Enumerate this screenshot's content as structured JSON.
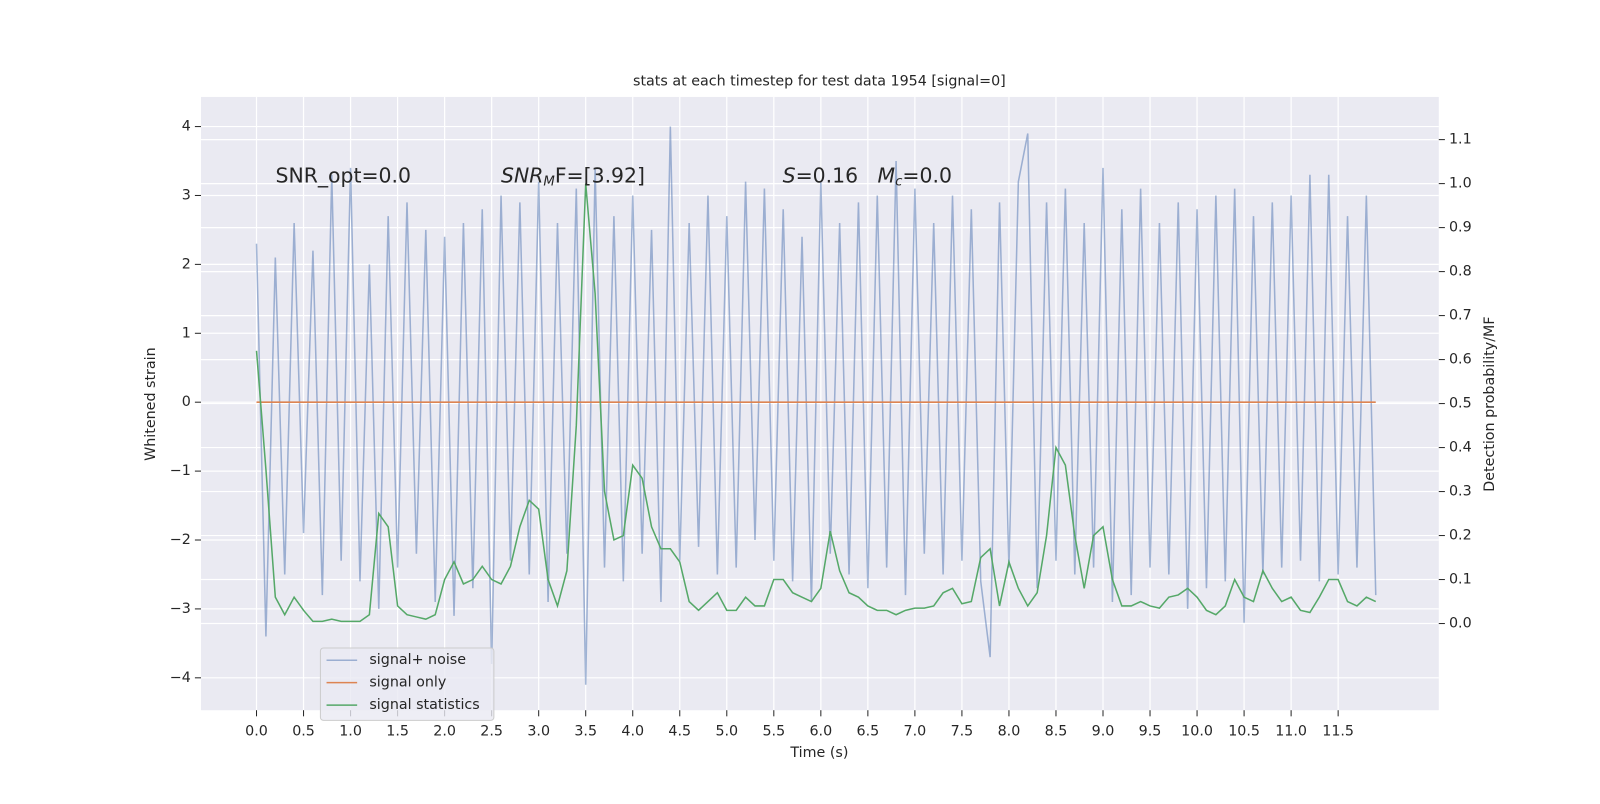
{
  "chart_data": {
    "type": "line",
    "title": "stats at each timestep for test data 1954 [signal=0]",
    "xlabel": "Time (s)",
    "ylabel": "Whitened strain",
    "y2label": "Detection probability/MF",
    "xlim": [
      -0.59,
      12.57
    ],
    "ylim": [
      -4.47,
      4.43
    ],
    "y2lim": [
      -0.197,
      1.197
    ],
    "xticks": [
      {
        "value": 0,
        "label": "0.0"
      },
      0.5,
      {
        "value": 1,
        "label": "1.0"
      },
      1.5,
      {
        "value": 2,
        "label": "2.0"
      },
      2.5,
      {
        "value": 3,
        "label": "3.0"
      },
      3.5,
      {
        "value": 4,
        "label": "4.0"
      },
      4.5,
      {
        "value": 5,
        "label": "5.0"
      },
      5.5,
      {
        "value": 6,
        "label": "6.0"
      },
      6.5,
      {
        "value": 7,
        "label": "7.0"
      },
      7.5,
      {
        "value": 8,
        "label": "8.0"
      },
      8.5,
      {
        "value": 9,
        "label": "9.0"
      },
      9.5,
      {
        "value": 10,
        "label": "10.0"
      },
      10.5,
      {
        "value": 11,
        "label": "11.0"
      },
      11.5
    ],
    "yticks": [
      {
        "value": -4,
        "label": "−4"
      },
      {
        "value": -3,
        "label": "−3"
      },
      {
        "value": -2,
        "label": "−2"
      },
      {
        "value": -1,
        "label": "−1"
      },
      0,
      1,
      2,
      3,
      4
    ],
    "y2ticks": [
      {
        "value": 0,
        "label": "0.0"
      },
      0.1,
      0.2,
      0.3,
      0.4,
      0.5,
      0.6,
      0.7,
      0.8,
      0.9,
      {
        "value": 1,
        "label": "1.0"
      },
      1.1
    ],
    "grid": true,
    "legend": "lower left",
    "annotations": [
      {
        "parts": [
          {
            "text": "SNR_opt=0.0",
            "style": "normal"
          }
        ]
      },
      {
        "parts": [
          {
            "text": "SNR",
            "style": "italic"
          },
          {
            "text": "M",
            "style": "italic-sub"
          },
          {
            "text": "F=[3.92]",
            "style": "normal"
          }
        ]
      },
      {
        "parts": [
          {
            "text": "S",
            "style": "italic"
          },
          {
            "text": "=0.16   ",
            "style": "normal"
          },
          {
            "text": "M",
            "style": "italic"
          },
          {
            "text": "c",
            "style": "italic-sub"
          },
          {
            "text": "=0.0",
            "style": "normal"
          }
        ]
      }
    ],
    "x": [
      0.0,
      0.1,
      0.2,
      0.3,
      0.4,
      0.5,
      0.6,
      0.7,
      0.8,
      0.9,
      1.0,
      1.1,
      1.2,
      1.3,
      1.4,
      1.5,
      1.6,
      1.7,
      1.8,
      1.9,
      2.0,
      2.1,
      2.2,
      2.3,
      2.4,
      2.5,
      2.6,
      2.7,
      2.8,
      2.9,
      3.0,
      3.1,
      3.2,
      3.3,
      3.4,
      3.5,
      3.6,
      3.7,
      3.8,
      3.9,
      4.0,
      4.1,
      4.2,
      4.3,
      4.4,
      4.5,
      4.6,
      4.7,
      4.8,
      4.9,
      5.0,
      5.1,
      5.2,
      5.3,
      5.4,
      5.5,
      5.6,
      5.7,
      5.8,
      5.9,
      6.0,
      6.1,
      6.2,
      6.3,
      6.4,
      6.5,
      6.6,
      6.7,
      6.8,
      6.9,
      7.0,
      7.1,
      7.2,
      7.3,
      7.4,
      7.5,
      7.6,
      7.7,
      7.8,
      7.9,
      8.0,
      8.1,
      8.2,
      8.3,
      8.4,
      8.5,
      8.6,
      8.7,
      8.8,
      8.9,
      9.0,
      9.1,
      9.2,
      9.3,
      9.4,
      9.5,
      9.6,
      9.7,
      9.8,
      9.9,
      10.0,
      10.1,
      10.2,
      10.3,
      10.4,
      10.5,
      10.6,
      10.7,
      10.8,
      10.9,
      11.0,
      11.1,
      11.2,
      11.3,
      11.4,
      11.5,
      11.6,
      11.7,
      11.8,
      11.9
    ],
    "series": [
      {
        "name": "signal+ noise",
        "color": "#4c72b0",
        "opacity": 0.5,
        "axis": "y",
        "values": [
          2.3,
          -3.4,
          2.1,
          -2.5,
          2.6,
          -1.9,
          2.2,
          -2.8,
          3.3,
          -2.3,
          3.4,
          -2.6,
          2.0,
          -3.0,
          2.7,
          -2.4,
          2.9,
          -2.2,
          2.5,
          -2.9,
          2.4,
          -3.1,
          2.6,
          -2.7,
          2.8,
          -3.8,
          3.0,
          -2.3,
          2.9,
          -2.5,
          3.2,
          -2.9,
          2.6,
          -2.2,
          3.1,
          -4.1,
          3.4,
          -2.4,
          2.7,
          -2.6,
          3.0,
          -2.2,
          2.5,
          -2.9,
          4.0,
          -2.3,
          2.6,
          -2.1,
          3.0,
          -2.5,
          2.7,
          -2.4,
          3.2,
          -2.0,
          3.1,
          -2.3,
          2.8,
          -2.6,
          2.4,
          -2.9,
          3.2,
          -2.2,
          2.6,
          -2.5,
          2.9,
          -2.7,
          3.0,
          -2.4,
          3.5,
          -2.8,
          3.1,
          -2.2,
          2.6,
          -2.5,
          3.0,
          -2.3,
          2.8,
          -2.6,
          -3.7,
          2.9,
          -2.4,
          3.2,
          3.9,
          -2.7,
          2.9,
          -2.3,
          3.1,
          -2.5,
          2.6,
          -2.4,
          3.4,
          -2.9,
          2.8,
          -2.8,
          3.1,
          -2.4,
          2.6,
          -2.5,
          2.9,
          -3.0,
          2.8,
          -2.7,
          3.0,
          -2.6,
          3.1,
          -3.2,
          2.7,
          -2.5,
          2.9,
          -2.4,
          3.0,
          -2.3,
          3.3,
          -2.6,
          3.3,
          -2.5,
          2.7,
          -2.4,
          3.0,
          -2.8
        ]
      },
      {
        "name": "signal only",
        "color": "#dd8452",
        "opacity": 1,
        "axis": "y",
        "values": [
          0,
          0,
          0,
          0,
          0,
          0,
          0,
          0,
          0,
          0,
          0,
          0,
          0,
          0,
          0,
          0,
          0,
          0,
          0,
          0,
          0,
          0,
          0,
          0,
          0,
          0,
          0,
          0,
          0,
          0,
          0,
          0,
          0,
          0,
          0,
          0,
          0,
          0,
          0,
          0,
          0,
          0,
          0,
          0,
          0,
          0,
          0,
          0,
          0,
          0,
          0,
          0,
          0,
          0,
          0,
          0,
          0,
          0,
          0,
          0,
          0,
          0,
          0,
          0,
          0,
          0,
          0,
          0,
          0,
          0,
          0,
          0,
          0,
          0,
          0,
          0,
          0,
          0,
          0,
          0,
          0,
          0,
          0,
          0,
          0,
          0,
          0,
          0,
          0,
          0,
          0,
          0,
          0,
          0,
          0,
          0,
          0,
          0,
          0,
          0,
          0,
          0,
          0,
          0,
          0,
          0,
          0,
          0,
          0,
          0,
          0,
          0,
          0,
          0,
          0,
          0,
          0,
          0,
          0,
          0
        ]
      },
      {
        "name": "signal statistics",
        "color": "#55a868",
        "opacity": 1,
        "axis": "y2",
        "values": [
          0.62,
          0.35,
          0.06,
          0.02,
          0.06,
          0.03,
          0.005,
          0.005,
          0.01,
          0.005,
          0.005,
          0.005,
          0.02,
          0.25,
          0.22,
          0.04,
          0.02,
          0.015,
          0.01,
          0.02,
          0.1,
          0.14,
          0.09,
          0.1,
          0.13,
          0.1,
          0.09,
          0.13,
          0.22,
          0.28,
          0.26,
          0.1,
          0.04,
          0.12,
          0.45,
          1.0,
          0.75,
          0.3,
          0.19,
          0.2,
          0.36,
          0.33,
          0.22,
          0.17,
          0.17,
          0.14,
          0.05,
          0.03,
          0.05,
          0.07,
          0.03,
          0.03,
          0.06,
          0.04,
          0.04,
          0.1,
          0.1,
          0.07,
          0.06,
          0.05,
          0.08,
          0.21,
          0.12,
          0.07,
          0.06,
          0.04,
          0.03,
          0.03,
          0.02,
          0.03,
          0.035,
          0.035,
          0.04,
          0.07,
          0.08,
          0.045,
          0.05,
          0.15,
          0.17,
          0.04,
          0.14,
          0.08,
          0.04,
          0.07,
          0.2,
          0.4,
          0.36,
          0.2,
          0.08,
          0.2,
          0.22,
          0.1,
          0.04,
          0.04,
          0.05,
          0.04,
          0.035,
          0.06,
          0.065,
          0.08,
          0.06,
          0.03,
          0.02,
          0.04,
          0.1,
          0.06,
          0.05,
          0.12,
          0.08,
          0.05,
          0.06,
          0.03,
          0.025,
          0.06,
          0.1,
          0.1,
          0.05,
          0.04,
          0.06,
          0.05
        ]
      }
    ]
  }
}
